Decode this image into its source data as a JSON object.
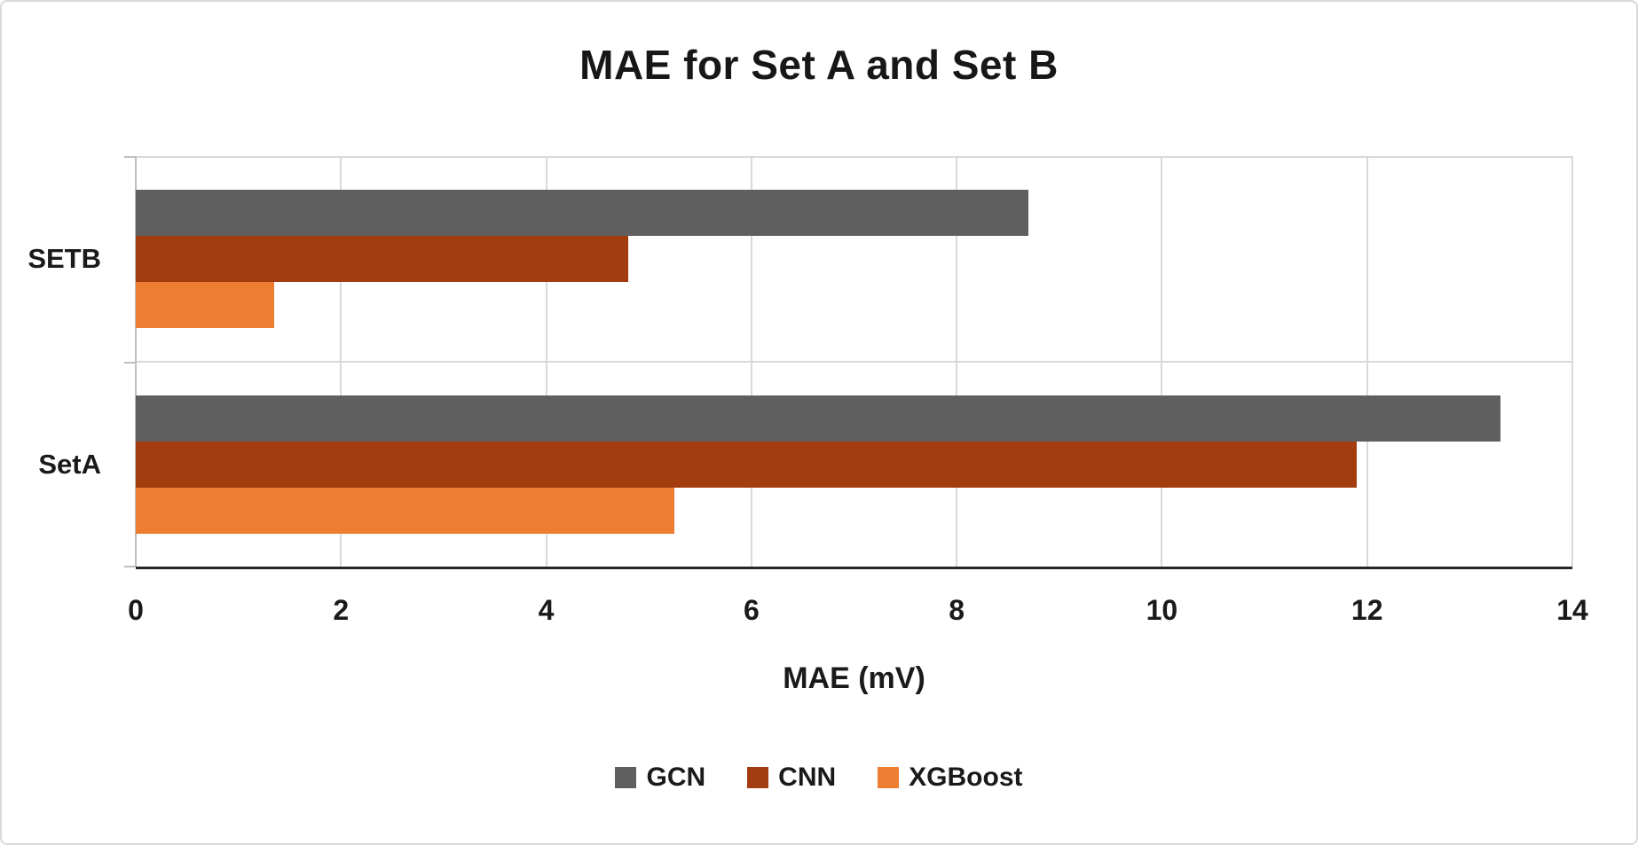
{
  "frame": {
    "background": "#ffffff",
    "border_color": "#d9d9d9"
  },
  "chart_data": {
    "type": "bar",
    "orientation": "horizontal",
    "title": "MAE for Set A and Set B",
    "xlabel": "MAE (mV)",
    "categories": [
      "SETB",
      "SetA"
    ],
    "series": [
      {
        "name": "GCN",
        "color": "#5F5F5F",
        "values": [
          8.7,
          13.3
        ]
      },
      {
        "name": "CNN",
        "color": "#A33C0E",
        "values": [
          4.8,
          11.9
        ]
      },
      {
        "name": "XGBoost",
        "color": "#ED7D31",
        "values": [
          1.35,
          5.25
        ]
      }
    ],
    "xlim": [
      0,
      14
    ],
    "xticks": [
      0,
      2,
      4,
      6,
      8,
      10,
      12,
      14
    ],
    "grid": "vertical-major",
    "legend_position": "bottom",
    "axis_color": "#262626",
    "gridline_color": "#D9D9D9",
    "category_axis_color": "#BFBFBF"
  }
}
